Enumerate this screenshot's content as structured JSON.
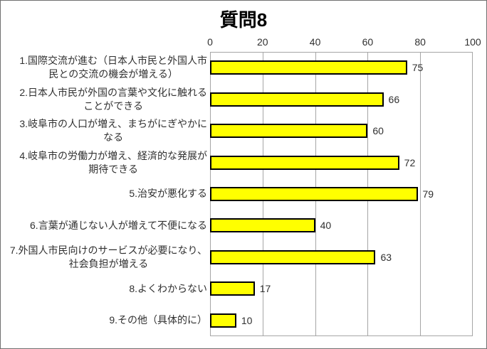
{
  "title": "質問8",
  "chart_data": {
    "type": "bar",
    "orientation": "horizontal",
    "title": "質問8",
    "categories": [
      "1.国際交流が進む（日本人市民と外国人市民との交流の機会が増える）",
      "2.日本人市民が外国の言葉や文化に触れることができる",
      "3.岐阜市の人口が増え、まちがにぎやかになる",
      "4.岐阜市の労働力が増え、経済的な発展が期待できる",
      "5.治安が悪化する",
      "6.言葉が通じない人が増えて不便になる",
      "7.外国人市民向けのサービスが必要になり、社会負担が増える",
      "8.よくわからない",
      "9.その他（具体的に）"
    ],
    "categories_wrapped": [
      [
        "1.国際交流が進む（日本人市民と外国人市",
        "民との交流の機会が増える）"
      ],
      [
        "2.日本人市民が外国の言葉や文化に触れる",
        "ことができる"
      ],
      [
        "3.岐阜市の人口が増え、まちがにぎやかに",
        "なる"
      ],
      [
        "4.岐阜市の労働力が増え、経済的な発展が",
        "期待できる"
      ],
      [
        "5.治安が悪化する"
      ],
      [
        "6.言葉が通じない人が増えて不便になる"
      ],
      [
        "7.外国人市民向けのサービスが必要になり、",
        "社会負担が増える"
      ],
      [
        "8.よくわからない"
      ],
      [
        "9.その他（具体的に）"
      ]
    ],
    "values": [
      75,
      66,
      60,
      72,
      79,
      40,
      63,
      17,
      10
    ],
    "xlim": [
      0,
      100
    ],
    "x_ticks": [
      0,
      20,
      40,
      60,
      80,
      100
    ],
    "value_labels_shown": true,
    "legend": "none",
    "grid": "vertical-major",
    "colors": {
      "bar_fill": "#FFFF00",
      "bar_border": "#000000",
      "gridline": "#A6A6A6",
      "text": "#303030",
      "title_text": "#000000",
      "background": "#FFFFFF",
      "chart_border": "#707070"
    }
  }
}
